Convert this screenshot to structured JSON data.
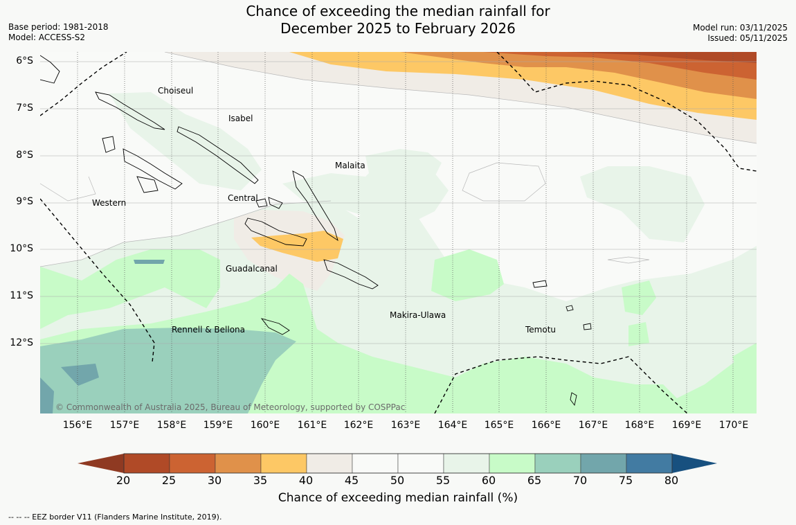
{
  "title_line1": "Chance of exceeding the median rainfall for",
  "title_line2": "December 2025 to February 2026",
  "base_period": "Base period: 1981-2018",
  "model": "Model: ACCESS-S2",
  "model_run": "Model run: 03/11/2025",
  "issued": "Issued: 05/11/2025",
  "lat_ticks": [
    "6°S",
    "7°S",
    "8°S",
    "9°S",
    "10°S",
    "11°S",
    "12°S"
  ],
  "lon_ticks": [
    "156°E",
    "157°E",
    "158°E",
    "159°E",
    "160°E",
    "161°E",
    "162°E",
    "163°E",
    "164°E",
    "165°E",
    "166°E",
    "167°E",
    "168°E",
    "169°E",
    "170°E"
  ],
  "places": {
    "choiseul": "Choiseul",
    "isabel": "Isabel",
    "malaita": "Malaita",
    "western": "Western",
    "central": "Central",
    "guadalcanal": "Guadalcanal",
    "makira": "Makira-Ulawa",
    "rennell": "Rennell & Bellona",
    "temotu": "Temotu"
  },
  "credit": "© Commonwealth of Australia 2025, Bureau of Meteorology, supported by COSPPac",
  "colorbar": {
    "ticks": [
      "20",
      "25",
      "30",
      "35",
      "40",
      "45",
      "50",
      "55",
      "60",
      "65",
      "70",
      "75",
      "80"
    ],
    "colors": [
      "#8f3a22",
      "#b04a27",
      "#cc6332",
      "#e0914a",
      "#fdc865",
      "#f0ece6",
      "#f9faf8",
      "#f9faf8",
      "#e8f4e9",
      "#c8fbc8",
      "#9ad0bc",
      "#72a6ab",
      "#427ba2",
      "#17507f"
    ],
    "label": "Chance of exceeding median rainfall (%)"
  },
  "eez_note": "-- -- -- EEZ border V11 (Flanders Marine Institute, 2019)."
}
